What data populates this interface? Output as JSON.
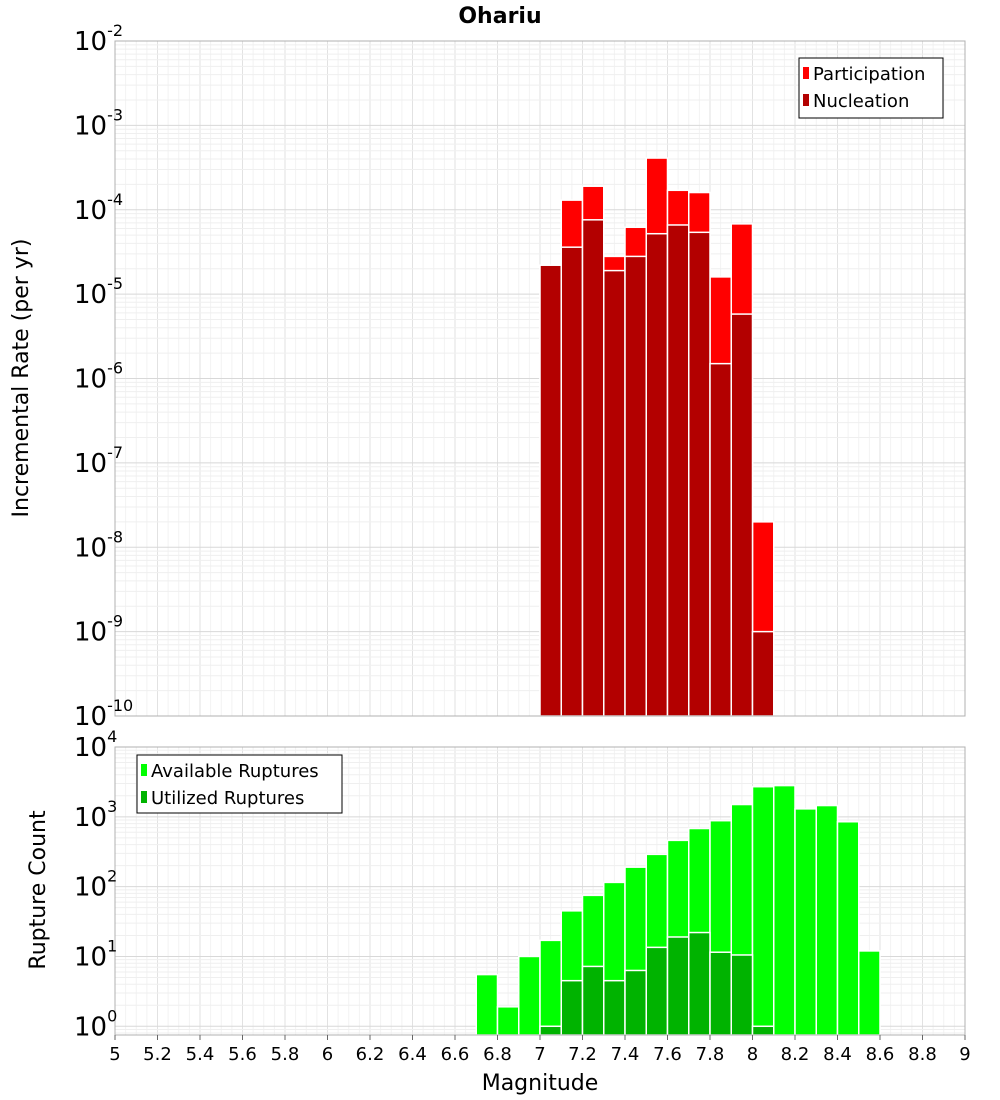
{
  "chart_data": [
    {
      "type": "bar",
      "title": "Ohariu",
      "xlabel": "",
      "ylabel": "Incremental Rate (per yr)",
      "yscale": "log",
      "ylim": [
        1e-10,
        0.01
      ],
      "xlim": [
        5,
        9
      ],
      "grid": true,
      "legend_position": "top-right",
      "x": [
        7.05,
        7.15,
        7.25,
        7.35,
        7.45,
        7.55,
        7.65,
        7.75,
        7.85,
        7.95,
        8.05
      ],
      "series": [
        {
          "name": "Participation",
          "color": "#ff0000",
          "values": [
            2.2e-05,
            0.00013,
            0.00019,
            2.8e-05,
            6.2e-05,
            0.00041,
            0.00017,
            0.00016,
            1.6e-05,
            6.8e-05,
            2e-08
          ]
        },
        {
          "name": "Nucleation",
          "color": "#b30000",
          "values": [
            2.2e-05,
            3.6e-05,
            7.6e-05,
            1.9e-05,
            2.8e-05,
            5.2e-05,
            6.6e-05,
            5.4e-05,
            1.5e-06,
            5.8e-06,
            1e-09
          ]
        }
      ],
      "y_ticks": [
        {
          "base": "10",
          "exp": "-2",
          "value": 0.01
        },
        {
          "base": "10",
          "exp": "-3",
          "value": 0.001
        },
        {
          "base": "10",
          "exp": "-4",
          "value": 0.0001
        },
        {
          "base": "10",
          "exp": "-5",
          "value": 1e-05
        },
        {
          "base": "10",
          "exp": "-6",
          "value": 1e-06
        },
        {
          "base": "10",
          "exp": "-7",
          "value": 1e-07
        },
        {
          "base": "10",
          "exp": "-8",
          "value": 1e-08
        },
        {
          "base": "10",
          "exp": "-9",
          "value": 1e-09
        },
        {
          "base": "10",
          "exp": "-10",
          "value": 1e-10
        }
      ]
    },
    {
      "type": "bar",
      "title": "",
      "xlabel": "Magnitude",
      "ylabel": "Rupture Count",
      "yscale": "log",
      "ylim": [
        0.75,
        10000
      ],
      "xlim": [
        5,
        9
      ],
      "grid": true,
      "legend_position": "top-left",
      "x": [
        6.75,
        6.85,
        6.95,
        7.05,
        7.15,
        7.25,
        7.35,
        7.45,
        7.55,
        7.65,
        7.75,
        7.85,
        7.95,
        8.05,
        8.15,
        8.25,
        8.35,
        8.45,
        8.55
      ],
      "series": [
        {
          "name": "Available Ruptures",
          "color": "#00ff00",
          "values": [
            5.5,
            1.9,
            10,
            17,
            45,
            75,
            115,
            190,
            290,
            460,
            680,
            880,
            1500,
            2700,
            2800,
            1300,
            1450,
            850,
            12
          ]
        },
        {
          "name": "Utilized Ruptures",
          "color": "#00b300",
          "values": [
            0,
            0,
            0,
            1,
            4.5,
            7.2,
            4.5,
            6.3,
            13.5,
            19,
            22,
            11.5,
            10.5,
            1,
            0,
            0,
            0,
            0,
            0
          ]
        }
      ],
      "y_ticks": [
        {
          "base": "10",
          "exp": "4",
          "value": 10000
        },
        {
          "base": "10",
          "exp": "3",
          "value": 1000
        },
        {
          "base": "10",
          "exp": "2",
          "value": 100
        },
        {
          "base": "10",
          "exp": "1",
          "value": 10
        },
        {
          "base": "10",
          "exp": "0",
          "value": 1
        }
      ],
      "x_ticks": [
        "5",
        "5.2",
        "5.4",
        "5.6",
        "5.8",
        "6",
        "6.2",
        "6.4",
        "6.6",
        "6.8",
        "7",
        "7.2",
        "7.4",
        "7.6",
        "7.8",
        "8",
        "8.2",
        "8.4",
        "8.6",
        "8.8",
        "9"
      ]
    }
  ]
}
